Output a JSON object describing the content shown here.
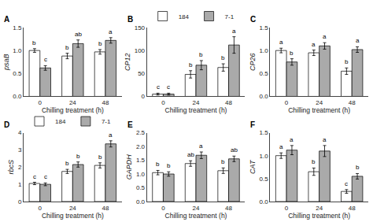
{
  "chart_data": [
    {
      "type": "bar",
      "title": "A",
      "xlabel": "Chilling treatment (h)",
      "ylabel": "psaB",
      "categories": [
        "0",
        "24",
        "48"
      ],
      "series": [
        {
          "name": "184",
          "color": "#ffffff",
          "values": [
            1.0,
            0.88,
            0.97
          ],
          "errors": [
            0.04,
            0.06,
            0.05
          ],
          "annotations": [
            "b",
            "b",
            "b"
          ]
        },
        {
          "name": "7-1",
          "color": "#aaaaaa",
          "values": [
            0.62,
            1.15,
            1.22
          ],
          "errors": [
            0.05,
            0.08,
            0.06
          ],
          "annotations": [
            "c",
            "ab",
            "a"
          ]
        }
      ],
      "ylim": [
        0,
        1.5
      ],
      "yticks": [
        {
          "value": 0,
          "label": "0.0"
        },
        {
          "value": 0.5,
          "label": "0.5"
        },
        {
          "value": 1.0,
          "label": "1.0"
        },
        {
          "value": 1.5,
          "label": "1.5"
        }
      ],
      "grid": false,
      "legend": false
    },
    {
      "type": "bar",
      "title": "B",
      "xlabel": "Chilling treatment (h)",
      "ylabel": "CP12",
      "categories": [
        "0",
        "24",
        "48"
      ],
      "series": [
        {
          "name": "184",
          "color": "#ffffff",
          "values": [
            5,
            48,
            63
          ],
          "errors": [
            2,
            8,
            8
          ],
          "annotations": [
            "c",
            "b",
            "b"
          ]
        },
        {
          "name": "7-1",
          "color": "#aaaaaa",
          "values": [
            5,
            68,
            112
          ],
          "errors": [
            2,
            10,
            18
          ],
          "annotations": [
            "c",
            "b",
            "a"
          ]
        }
      ],
      "ylim": [
        0,
        150
      ],
      "yticks": [
        0,
        50,
        100,
        150
      ],
      "grid": false,
      "legend": "top"
    },
    {
      "type": "bar",
      "title": "C",
      "xlabel": "Chilling treatment (h)",
      "ylabel": "CP26",
      "categories": [
        "0",
        "24",
        "48"
      ],
      "series": [
        {
          "name": "184",
          "color": "#ffffff",
          "values": [
            1.0,
            0.95,
            0.55
          ],
          "errors": [
            0.05,
            0.06,
            0.07
          ],
          "annotations": [
            "a",
            "a",
            "b"
          ]
        },
        {
          "name": "7-1",
          "color": "#aaaaaa",
          "values": [
            0.75,
            1.1,
            1.02
          ],
          "errors": [
            0.07,
            0.07,
            0.06
          ],
          "annotations": [
            "b",
            "a",
            "a"
          ]
        }
      ],
      "ylim": [
        0,
        1.5
      ],
      "yticks": [
        {
          "value": 0,
          "label": "0.0"
        },
        {
          "value": 0.5,
          "label": "0.5"
        },
        {
          "value": 1.0,
          "label": "1.0"
        },
        {
          "value": 1.5,
          "label": "1.5"
        }
      ],
      "grid": false,
      "legend": false
    },
    {
      "type": "bar",
      "title": "D",
      "xlabel": "Chilling treatment (h)",
      "ylabel": "rbcS",
      "categories": [
        "0",
        "24",
        "48"
      ],
      "series": [
        {
          "name": "184",
          "color": "#ffffff",
          "values": [
            1.05,
            1.75,
            2.1
          ],
          "errors": [
            0.07,
            0.12,
            0.15
          ],
          "annotations": [
            "c",
            "b",
            "b"
          ]
        },
        {
          "name": "7-1",
          "color": "#aaaaaa",
          "values": [
            1.0,
            2.15,
            3.35
          ],
          "errors": [
            0.08,
            0.15,
            0.18
          ],
          "annotations": [
            "c",
            "b",
            "a"
          ]
        }
      ],
      "ylim": [
        0,
        4
      ],
      "yticks": [
        0,
        1,
        2,
        3,
        4
      ],
      "grid": false,
      "legend": "top"
    },
    {
      "type": "bar",
      "title": "E",
      "xlabel": "Chilling treatment (h)",
      "ylabel": "GAPDH",
      "categories": [
        "0",
        "24",
        "48"
      ],
      "series": [
        {
          "name": "184",
          "color": "#ffffff",
          "values": [
            1.05,
            1.38,
            1.12
          ],
          "errors": [
            0.08,
            0.1,
            0.1
          ],
          "annotations": [
            "b",
            "ab",
            "b"
          ]
        },
        {
          "name": "7-1",
          "color": "#aaaaaa",
          "values": [
            1.0,
            1.68,
            1.55
          ],
          "errors": [
            0.08,
            0.12,
            0.1
          ],
          "annotations": [
            "b",
            "a",
            "ab"
          ]
        }
      ],
      "ylim": [
        0,
        2.5
      ],
      "yticks": [
        {
          "value": 0,
          "label": "0.0"
        },
        {
          "value": 0.5,
          "label": "0.5"
        },
        {
          "value": 1.0,
          "label": "1.0"
        },
        {
          "value": 1.5,
          "label": "1.5"
        },
        {
          "value": 2.0,
          "label": "2.0"
        },
        {
          "value": 2.5,
          "label": "2.5"
        }
      ],
      "grid": false,
      "legend": false
    },
    {
      "type": "bar",
      "title": "F",
      "xlabel": "Chilling treatment (h)",
      "ylabel": "CAT",
      "categories": [
        "0",
        "24",
        "48"
      ],
      "series": [
        {
          "name": "184",
          "color": "#ffffff",
          "values": [
            1.0,
            0.65,
            0.22
          ],
          "errors": [
            0.06,
            0.08,
            0.04
          ],
          "annotations": [
            "a",
            "b",
            "c"
          ]
        },
        {
          "name": "7-1",
          "color": "#aaaaaa",
          "values": [
            1.12,
            1.1,
            0.55
          ],
          "errors": [
            0.1,
            0.12,
            0.06
          ],
          "annotations": [
            "a",
            "a",
            "b"
          ]
        }
      ],
      "ylim": [
        0,
        1.5
      ],
      "yticks": [
        {
          "value": 0,
          "label": "0.0"
        },
        {
          "value": 0.5,
          "label": "0.5"
        },
        {
          "value": 1.0,
          "label": "1.0"
        },
        {
          "value": 1.5,
          "label": "1.5"
        }
      ],
      "grid": false,
      "legend": false
    }
  ]
}
